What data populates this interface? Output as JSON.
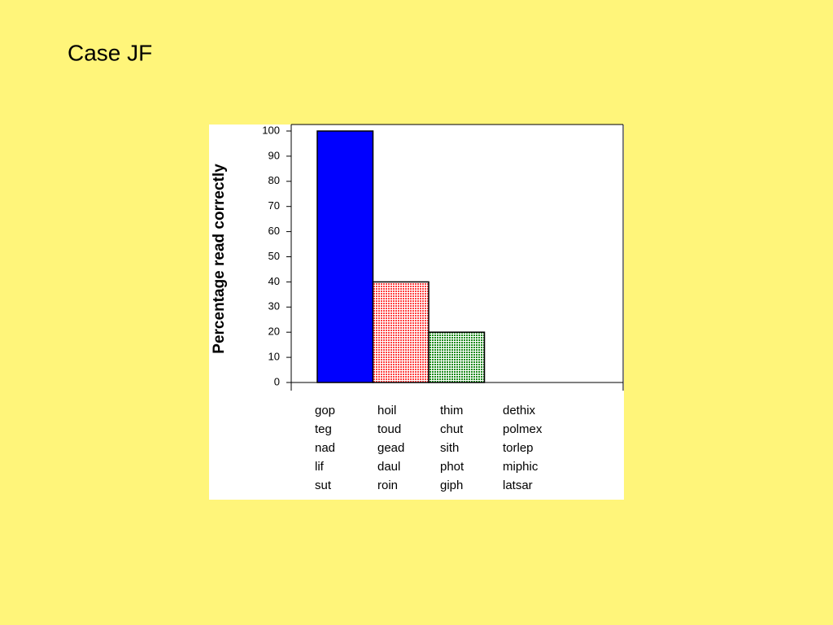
{
  "chart_data": {
    "type": "bar",
    "title": "Case JF",
    "ylabel": "Percentage read correctly",
    "categories": [
      [
        "gop",
        "teg",
        "nad",
        "lif",
        "sut"
      ],
      [
        "hoil",
        "toud",
        "gead",
        "daul",
        "roin"
      ],
      [
        "thim",
        "chut",
        "sith",
        "phot",
        "giph"
      ],
      [
        "dethix",
        "polmex",
        "torlep",
        "miphic",
        "latsar"
      ]
    ],
    "values": [
      100,
      40,
      20,
      0
    ],
    "colors": [
      "#0000ff",
      "#ff4040",
      "#1a8a1a",
      "#000000"
    ],
    "patterned": [
      false,
      true,
      true,
      false
    ],
    "ylim": [
      0,
      100
    ],
    "yticks": [
      0,
      10,
      20,
      30,
      40,
      50,
      60,
      70,
      80,
      90,
      100
    ],
    "grid": false
  }
}
